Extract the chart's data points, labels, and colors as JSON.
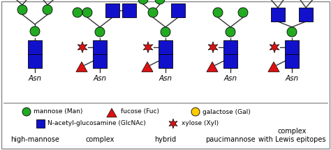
{
  "bg_color": "#ffffff",
  "green": "#22aa22",
  "blue": "#1111cc",
  "red": "#dd1111",
  "yellow": "#ffcc00",
  "line_color": "#333333",
  "label_fontsize": 7.5,
  "name_fontsize": 7,
  "legend_fontsize": 6.5,
  "structures": [
    "high-mannose",
    "complex",
    "hybrid",
    "paucimannose",
    "complex\nwith Lewis epitopes"
  ],
  "asn_label": "Asn"
}
